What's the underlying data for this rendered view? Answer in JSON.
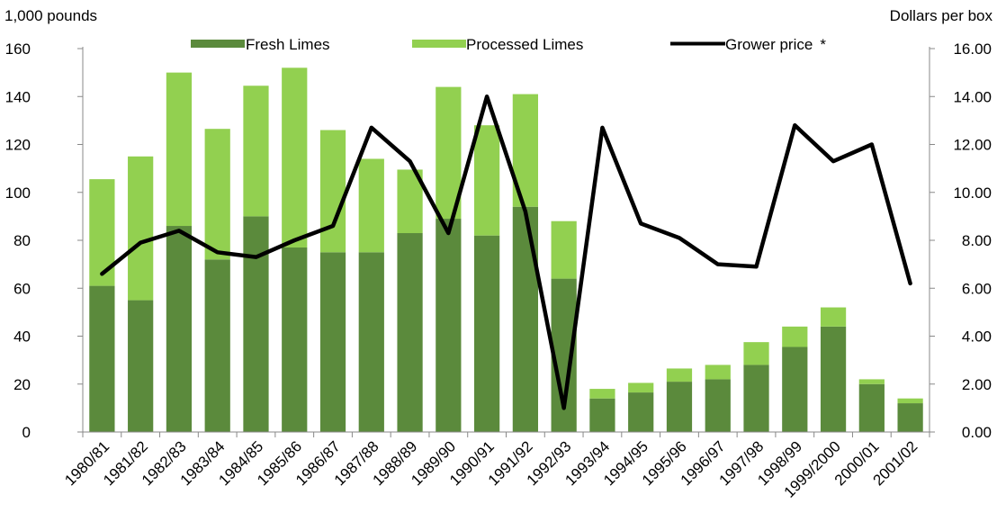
{
  "chart_data": {
    "type": "bar",
    "stacked": true,
    "left_axis_label": "1,000 pounds",
    "right_axis_label": "Dollars per box",
    "categories": [
      "1980/81",
      "1981/82",
      "1982/83",
      "1983/84",
      "1984/85",
      "1985/86",
      "1986/87",
      "1987/88",
      "1988/89",
      "1989/90",
      "1990/91",
      "1991/92",
      "1992/93",
      "1993/94",
      "1994/95",
      "1995/96",
      "1996/97",
      "1997/98",
      "1998/99",
      "1999/2000",
      "2000/01",
      "2001/02"
    ],
    "series": [
      {
        "name": "Fresh Limes",
        "axis": "left",
        "color": "#5b8a3c",
        "values": [
          61,
          55,
          86,
          72,
          90,
          77,
          75,
          75,
          83,
          89,
          82,
          94,
          64,
          14,
          16.5,
          21,
          22,
          28,
          35.5,
          44,
          20,
          12
        ]
      },
      {
        "name": "Processed Limes",
        "axis": "left",
        "color": "#92d050",
        "values": [
          44.5,
          60,
          64,
          54.5,
          54.5,
          75,
          51,
          39,
          26.5,
          55,
          46,
          47,
          24,
          4,
          4,
          5.5,
          6,
          9.5,
          8.5,
          8,
          2,
          2
        ]
      },
      {
        "name": "Grower price",
        "legend_suffix": "*",
        "axis": "right",
        "type": "line",
        "color": "#000000",
        "values": [
          6.6,
          7.9,
          8.4,
          7.5,
          7.3,
          8.0,
          8.6,
          12.7,
          11.3,
          8.3,
          14.0,
          9.2,
          1.0,
          12.7,
          8.7,
          8.1,
          7.0,
          6.9,
          12.8,
          11.3,
          12.0,
          6.2
        ]
      }
    ],
    "left_ticks": [
      "0",
      "20",
      "40",
      "60",
      "80",
      "100",
      "120",
      "140",
      "160"
    ],
    "right_ticks": [
      "0.00",
      "2.00",
      "4.00",
      "6.00",
      "8.00",
      "10.00",
      "12.00",
      "14.00",
      "16.00"
    ],
    "ylim_left": [
      0,
      160
    ],
    "ylim_right": [
      0,
      16
    ],
    "legend_position": "top",
    "grid": false
  }
}
